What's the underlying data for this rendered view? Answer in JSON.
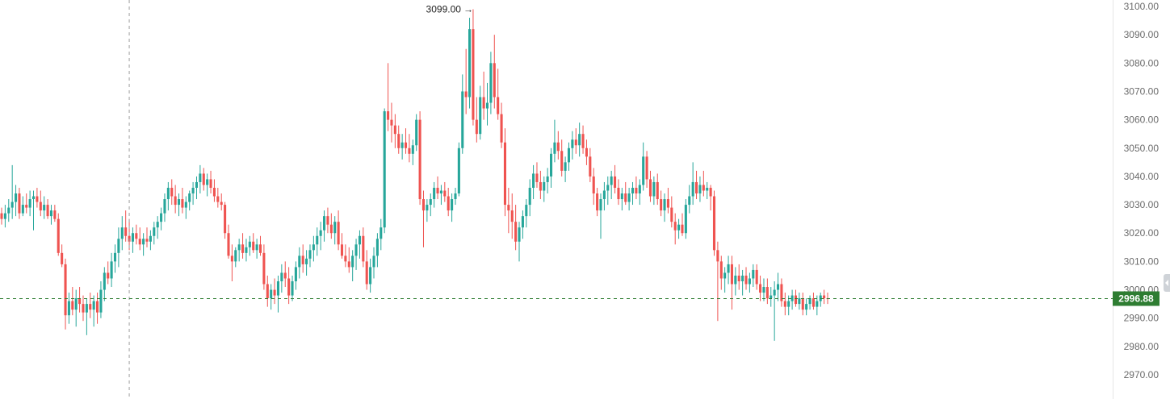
{
  "colors": {
    "up": "#26a69a",
    "down": "#ef5350",
    "crosshair": "#9e9e9e",
    "price_line": "#2e7d32",
    "price_badge": "#2e7d32",
    "axis_text": "#6b6b6b",
    "axis_border": "#e6e6e6",
    "background": "#ffffff"
  },
  "axis": {
    "ticks": [
      "3100.00",
      "3090.00",
      "3080.00",
      "3070.00",
      "3060.00",
      "3050.00",
      "3040.00",
      "3030.00",
      "3020.00",
      "3010.00",
      "3000.00",
      "2990.00",
      "2980.00",
      "2970.00"
    ]
  },
  "price_label": "2996.88",
  "high_marker": "3099.00",
  "scroll_handle_icon": "chevron-left-icon",
  "chart_data": {
    "type": "candlestick",
    "title": "",
    "ylim": [
      2965,
      3102
    ],
    "last_price": 2996.88,
    "high": 3099.0,
    "crosshair_candle_index": 36,
    "candles": [
      [
        3027.0,
        3029.0,
        3023.0,
        3025.0
      ],
      [
        3025.0,
        3030.0,
        3022.0,
        3027.0
      ],
      [
        3027.0,
        3032.0,
        3024.0,
        3029.0
      ],
      [
        3029.0,
        3044.0,
        3025.0,
        3031.0
      ],
      [
        3031.0,
        3037.0,
        3026.0,
        3034.0
      ],
      [
        3034.0,
        3036.0,
        3025.0,
        3027.0
      ],
      [
        3027.0,
        3033.0,
        3026.0,
        3030.0
      ],
      [
        3030.0,
        3034.0,
        3027.0,
        3029.0
      ],
      [
        3029.0,
        3035.0,
        3026.0,
        3032.0
      ],
      [
        3032.0,
        3035.0,
        3021.0,
        3033.0
      ],
      [
        3033.0,
        3036.0,
        3029.0,
        3031.0
      ],
      [
        3031.0,
        3035.0,
        3026.0,
        3028.0
      ],
      [
        3028.0,
        3033.0,
        3025.0,
        3030.0
      ],
      [
        3030.0,
        3032.0,
        3025.0,
        3026.0
      ],
      [
        3026.0,
        3030.0,
        3023.0,
        3028.0
      ],
      [
        3028.0,
        3030.0,
        3024.0,
        3025.0
      ],
      [
        3025.0,
        3027.0,
        3012.0,
        3013.0
      ],
      [
        3013.0,
        3016.0,
        3008.0,
        3009.0
      ],
      [
        3009.0,
        3011.0,
        2986.0,
        2991.0
      ],
      [
        2991.0,
        2999.0,
        2988.0,
        2996.0
      ],
      [
        2996.0,
        3001.0,
        2991.0,
        2993.0
      ],
      [
        2993.0,
        3000.0,
        2987.0,
        2997.0
      ],
      [
        2997.0,
        3001.0,
        2992.0,
        2995.0
      ],
      [
        2995.0,
        2998.0,
        2989.0,
        2992.0
      ],
      [
        2992.0,
        2997.0,
        2984.0,
        2995.0
      ],
      [
        2995.0,
        2999.0,
        2990.0,
        2993.0
      ],
      [
        2993.0,
        2998.0,
        2987.0,
        2996.0
      ],
      [
        2996.0,
        2999.0,
        2988.0,
        2992.0
      ],
      [
        2992.0,
        3003.0,
        2990.0,
        3000.0
      ],
      [
        3000.0,
        3008.0,
        2996.0,
        3006.0
      ],
      [
        3006.0,
        3010.0,
        3002.0,
        3004.0
      ],
      [
        3004.0,
        3013.0,
        3001.0,
        3010.0
      ],
      [
        3010.0,
        3016.0,
        3006.0,
        3013.0
      ],
      [
        3013.0,
        3022.0,
        3008.0,
        3018.0
      ],
      [
        3018.0,
        3026.0,
        3014.0,
        3022.0
      ],
      [
        3022.0,
        3028.0,
        3017.0,
        3019.0
      ],
      [
        3019.0,
        3025.0,
        3014.0,
        3017.0
      ],
      [
        3017.0,
        3022.0,
        3013.0,
        3020.0
      ],
      [
        3020.0,
        3023.0,
        3016.0,
        3018.0
      ],
      [
        3018.0,
        3022.0,
        3014.0,
        3016.0
      ],
      [
        3016.0,
        3020.0,
        3012.0,
        3018.0
      ],
      [
        3018.0,
        3022.0,
        3015.0,
        3017.0
      ],
      [
        3017.0,
        3021.0,
        3014.0,
        3019.0
      ],
      [
        3019.0,
        3024.0,
        3016.0,
        3022.0
      ],
      [
        3022.0,
        3026.0,
        3018.0,
        3024.0
      ],
      [
        3024.0,
        3029.0,
        3021.0,
        3027.0
      ],
      [
        3027.0,
        3034.0,
        3024.0,
        3032.0
      ],
      [
        3032.0,
        3038.0,
        3028.0,
        3036.0
      ],
      [
        3036.0,
        3039.0,
        3030.0,
        3033.0
      ],
      [
        3033.0,
        3037.0,
        3027.0,
        3030.0
      ],
      [
        3030.0,
        3034.0,
        3026.0,
        3032.0
      ],
      [
        3032.0,
        3036.0,
        3027.0,
        3029.0
      ],
      [
        3029.0,
        3033.0,
        3025.0,
        3031.0
      ],
      [
        3031.0,
        3035.0,
        3028.0,
        3034.0
      ],
      [
        3034.0,
        3038.0,
        3030.0,
        3036.0
      ],
      [
        3036.0,
        3040.0,
        3032.0,
        3038.0
      ],
      [
        3038.0,
        3044.0,
        3034.0,
        3041.0
      ],
      [
        3041.0,
        3043.0,
        3035.0,
        3037.0
      ],
      [
        3037.0,
        3041.0,
        3033.0,
        3039.0
      ],
      [
        3039.0,
        3042.0,
        3034.0,
        3036.0
      ],
      [
        3036.0,
        3039.0,
        3031.0,
        3033.0
      ],
      [
        3033.0,
        3036.0,
        3029.0,
        3031.0
      ],
      [
        3031.0,
        3034.0,
        3028.0,
        3030.0
      ],
      [
        3030.0,
        3031.0,
        3018.0,
        3020.0
      ],
      [
        3020.0,
        3023.0,
        3011.0,
        3012.0
      ],
      [
        3012.0,
        3016.0,
        3003.0,
        3010.0
      ],
      [
        3010.0,
        3015.0,
        3008.0,
        3014.0
      ],
      [
        3014.0,
        3018.0,
        3010.0,
        3016.0
      ],
      [
        3016.0,
        3020.0,
        3011.0,
        3013.0
      ],
      [
        3013.0,
        3018.0,
        3010.0,
        3015.0
      ],
      [
        3015.0,
        3019.0,
        3012.0,
        3017.0
      ],
      [
        3017.0,
        3020.0,
        3013.0,
        3014.0
      ],
      [
        3014.0,
        3018.0,
        3011.0,
        3016.0
      ],
      [
        3016.0,
        3019.0,
        3012.0,
        3013.0
      ],
      [
        3013.0,
        3016.0,
        3000.0,
        3002.0
      ],
      [
        3002.0,
        3005.0,
        2994.0,
        2997.0
      ],
      [
        2997.0,
        3002.0,
        2993.0,
        3000.0
      ],
      [
        3000.0,
        3004.0,
        2995.0,
        2998.0
      ],
      [
        2998.0,
        3005.0,
        2992.0,
        3003.0
      ],
      [
        3003.0,
        3009.0,
        2999.0,
        3006.0
      ],
      [
        3006.0,
        3010.0,
        3001.0,
        3004.0
      ],
      [
        3004.0,
        3008.0,
        2995.0,
        2998.0
      ],
      [
        2998.0,
        3005.0,
        2996.0,
        3003.0
      ],
      [
        3003.0,
        3010.0,
        3000.0,
        3008.0
      ],
      [
        3008.0,
        3015.0,
        3004.0,
        3012.0
      ],
      [
        3012.0,
        3016.0,
        3006.0,
        3009.0
      ],
      [
        3009.0,
        3014.0,
        3005.0,
        3011.0
      ],
      [
        3011.0,
        3016.0,
        3008.0,
        3014.0
      ],
      [
        3014.0,
        3019.0,
        3010.0,
        3016.0
      ],
      [
        3016.0,
        3022.0,
        3012.0,
        3019.0
      ],
      [
        3019.0,
        3024.0,
        3014.0,
        3021.0
      ],
      [
        3021.0,
        3028.0,
        3017.0,
        3026.0
      ],
      [
        3026.0,
        3029.0,
        3020.0,
        3023.0
      ],
      [
        3023.0,
        3027.0,
        3018.0,
        3020.0
      ],
      [
        3020.0,
        3026.0,
        3016.0,
        3024.0
      ],
      [
        3024.0,
        3028.0,
        3014.0,
        3016.0
      ],
      [
        3016.0,
        3020.0,
        3011.0,
        3012.0
      ],
      [
        3012.0,
        3016.0,
        3008.0,
        3010.0
      ],
      [
        3010.0,
        3015.0,
        3006.0,
        3008.0
      ],
      [
        3008.0,
        3014.0,
        3003.0,
        3012.0
      ],
      [
        3012.0,
        3018.0,
        3007.0,
        3016.0
      ],
      [
        3016.0,
        3021.0,
        3011.0,
        3019.0
      ],
      [
        3019.0,
        3022.0,
        3008.0,
        3010.0
      ],
      [
        3010.0,
        3014.0,
        3000.0,
        3002.0
      ],
      [
        3002.0,
        3011.0,
        2999.0,
        3008.0
      ],
      [
        3008.0,
        3015.0,
        3004.0,
        3012.0
      ],
      [
        3012.0,
        3020.0,
        3008.0,
        3018.0
      ],
      [
        3018.0,
        3025.0,
        3014.0,
        3022.0
      ],
      [
        3022.0,
        3064.0,
        3020.0,
        3063.0
      ],
      [
        3063.0,
        3080.0,
        3056.0,
        3060.0
      ],
      [
        3060.0,
        3066.0,
        3052.0,
        3058.0
      ],
      [
        3058.0,
        3062.0,
        3050.0,
        3055.0
      ],
      [
        3055.0,
        3058.0,
        3048.0,
        3050.0
      ],
      [
        3050.0,
        3055.0,
        3046.0,
        3052.0
      ],
      [
        3052.0,
        3057.0,
        3048.0,
        3050.0
      ],
      [
        3050.0,
        3055.0,
        3045.0,
        3048.0
      ],
      [
        3048.0,
        3053.0,
        3044.0,
        3051.0
      ],
      [
        3051.0,
        3062.0,
        3049.0,
        3060.0
      ],
      [
        3060.0,
        3063.0,
        3030.0,
        3032.0
      ],
      [
        3032.0,
        3035.0,
        3015.0,
        3028.0
      ],
      [
        3028.0,
        3032.0,
        3024.0,
        3030.0
      ],
      [
        3030.0,
        3034.0,
        3026.0,
        3032.0
      ],
      [
        3032.0,
        3038.0,
        3029.0,
        3036.0
      ],
      [
        3036.0,
        3040.0,
        3032.0,
        3034.0
      ],
      [
        3034.0,
        3037.0,
        3030.0,
        3035.0
      ],
      [
        3035.0,
        3038.0,
        3031.0,
        3033.0
      ],
      [
        3033.0,
        3036.0,
        3026.0,
        3028.0
      ],
      [
        3028.0,
        3034.0,
        3024.0,
        3032.0
      ],
      [
        3032.0,
        3036.0,
        3030.0,
        3034.0
      ],
      [
        3034.0,
        3052.0,
        3033.0,
        3050.0
      ],
      [
        3050.0,
        3076.0,
        3048.0,
        3070.0
      ],
      [
        3070.0,
        3085.0,
        3062.0,
        3068.0
      ],
      [
        3068.0,
        3096.0,
        3064.0,
        3092.0
      ],
      [
        3092.0,
        3099.0,
        3058.0,
        3060.0
      ],
      [
        3060.0,
        3068.0,
        3052.0,
        3055.0
      ],
      [
        3055.0,
        3072.0,
        3053.0,
        3068.0
      ],
      [
        3068.0,
        3077.0,
        3060.0,
        3064.0
      ],
      [
        3064.0,
        3073.0,
        3058.0,
        3066.0
      ],
      [
        3066.0,
        3084.0,
        3062.0,
        3080.0
      ],
      [
        3080.0,
        3090.0,
        3064.0,
        3068.0
      ],
      [
        3068.0,
        3078.0,
        3060.0,
        3062.0
      ],
      [
        3062.0,
        3066.0,
        3050.0,
        3052.0
      ],
      [
        3052.0,
        3057.0,
        3026.0,
        3030.0
      ],
      [
        3030.0,
        3036.0,
        3020.0,
        3028.0
      ],
      [
        3028.0,
        3034.0,
        3018.0,
        3024.0
      ],
      [
        3024.0,
        3030.0,
        3014.0,
        3017.0
      ],
      [
        3017.0,
        3024.0,
        3010.0,
        3022.0
      ],
      [
        3022.0,
        3028.0,
        3018.0,
        3026.0
      ],
      [
        3026.0,
        3032.0,
        3022.0,
        3030.0
      ],
      [
        3030.0,
        3039.0,
        3026.0,
        3036.0
      ],
      [
        3036.0,
        3044.0,
        3032.0,
        3041.0
      ],
      [
        3041.0,
        3045.0,
        3036.0,
        3038.0
      ],
      [
        3038.0,
        3042.0,
        3032.0,
        3035.0
      ],
      [
        3035.0,
        3040.0,
        3031.0,
        3038.0
      ],
      [
        3038.0,
        3043.0,
        3034.0,
        3040.0
      ],
      [
        3040.0,
        3050.0,
        3036.0,
        3048.0
      ],
      [
        3048.0,
        3060.0,
        3045.0,
        3052.0
      ],
      [
        3052.0,
        3056.0,
        3046.0,
        3049.0
      ],
      [
        3049.0,
        3053.0,
        3040.0,
        3042.0
      ],
      [
        3042.0,
        3047.0,
        3038.0,
        3045.0
      ],
      [
        3045.0,
        3052.0,
        3042.0,
        3050.0
      ],
      [
        3050.0,
        3056.0,
        3046.0,
        3053.0
      ],
      [
        3053.0,
        3057.0,
        3048.0,
        3051.0
      ],
      [
        3051.0,
        3059.0,
        3047.0,
        3055.0
      ],
      [
        3055.0,
        3058.0,
        3048.0,
        3050.0
      ],
      [
        3050.0,
        3053.0,
        3044.0,
        3047.0
      ],
      [
        3047.0,
        3050.0,
        3038.0,
        3040.0
      ],
      [
        3040.0,
        3043.0,
        3030.0,
        3034.0
      ],
      [
        3034.0,
        3036.0,
        3026.0,
        3028.0
      ],
      [
        3028.0,
        3034.0,
        3018.0,
        3032.0
      ],
      [
        3032.0,
        3038.0,
        3028.0,
        3035.0
      ],
      [
        3035.0,
        3040.0,
        3030.0,
        3037.0
      ],
      [
        3037.0,
        3042.0,
        3032.0,
        3040.0
      ],
      [
        3040.0,
        3044.0,
        3034.0,
        3036.0
      ],
      [
        3036.0,
        3039.0,
        3030.0,
        3032.0
      ],
      [
        3032.0,
        3036.0,
        3028.0,
        3034.0
      ],
      [
        3034.0,
        3038.0,
        3030.0,
        3031.0
      ],
      [
        3031.0,
        3036.0,
        3028.0,
        3034.0
      ],
      [
        3034.0,
        3038.0,
        3030.0,
        3036.0
      ],
      [
        3036.0,
        3040.0,
        3032.0,
        3034.0
      ],
      [
        3034.0,
        3039.0,
        3030.0,
        3037.0
      ],
      [
        3037.0,
        3052.0,
        3035.0,
        3047.0
      ],
      [
        3047.0,
        3049.0,
        3036.0,
        3039.0
      ],
      [
        3039.0,
        3042.0,
        3031.0,
        3033.0
      ],
      [
        3033.0,
        3040.0,
        3030.0,
        3038.0
      ],
      [
        3038.0,
        3041.0,
        3030.0,
        3032.0
      ],
      [
        3032.0,
        3035.0,
        3026.0,
        3028.0
      ],
      [
        3028.0,
        3034.0,
        3024.0,
        3032.0
      ],
      [
        3032.0,
        3036.0,
        3027.0,
        3029.0
      ],
      [
        3029.0,
        3033.0,
        3022.0,
        3024.0
      ],
      [
        3024.0,
        3027.0,
        3016.0,
        3021.0
      ],
      [
        3021.0,
        3025.0,
        3018.0,
        3023.0
      ],
      [
        3023.0,
        3027.0,
        3019.0,
        3020.0
      ],
      [
        3020.0,
        3032.0,
        3018.0,
        3030.0
      ],
      [
        3030.0,
        3037.0,
        3027.0,
        3033.0
      ],
      [
        3033.0,
        3045.0,
        3030.0,
        3038.0
      ],
      [
        3038.0,
        3042.0,
        3032.0,
        3034.0
      ],
      [
        3034.0,
        3040.0,
        3031.0,
        3037.0
      ],
      [
        3037.0,
        3042.0,
        3033.0,
        3035.0
      ],
      [
        3035.0,
        3038.0,
        3032.0,
        3036.0
      ],
      [
        3036.0,
        3037.0,
        3028.0,
        3033.0
      ],
      [
        3033.0,
        3035.0,
        3012.0,
        3014.0
      ],
      [
        3014.0,
        3017.0,
        2989.0,
        3010.0
      ],
      [
        3010.0,
        3012.0,
        3000.0,
        3004.0
      ],
      [
        3004.0,
        3008.0,
        2999.0,
        3006.0
      ],
      [
        3006.0,
        3012.0,
        3002.0,
        3009.0
      ],
      [
        3009.0,
        3012.0,
        2993.0,
        3002.0
      ],
      [
        3002.0,
        3008.0,
        2998.0,
        3005.0
      ],
      [
        3005.0,
        3009.0,
        3000.0,
        3003.0
      ],
      [
        3003.0,
        3007.0,
        2998.0,
        3005.0
      ],
      [
        3005.0,
        3008.0,
        3000.0,
        3002.0
      ],
      [
        3002.0,
        3006.0,
        2999.0,
        3004.0
      ],
      [
        3004.0,
        3009.0,
        3001.0,
        3007.0
      ],
      [
        3007.0,
        3009.0,
        3000.0,
        3002.0
      ],
      [
        3002.0,
        3005.0,
        2996.0,
        2999.0
      ],
      [
        2999.0,
        3004.0,
        2996.0,
        3001.0
      ],
      [
        3001.0,
        3004.0,
        2995.0,
        2997.0
      ],
      [
        2997.0,
        3001.0,
        2994.0,
        2998.0
      ],
      [
        2998.0,
        3003.0,
        2982.0,
        3000.0
      ],
      [
        3000.0,
        3006.0,
        2996.0,
        3002.0
      ],
      [
        3002.0,
        3004.0,
        2994.0,
        2996.0
      ],
      [
        2996.0,
        2999.0,
        2991.0,
        2994.0
      ],
      [
        2994.0,
        2998.0,
        2991.0,
        2996.0
      ],
      [
        2996.0,
        3000.0,
        2993.0,
        2998.0
      ],
      [
        2998.0,
        3000.0,
        2994.0,
        2995.0
      ],
      [
        2995.0,
        2999.0,
        2993.0,
        2997.0
      ],
      [
        2997.0,
        2999.0,
        2991.0,
        2993.0
      ],
      [
        2993.0,
        2997.0,
        2991.0,
        2995.0
      ],
      [
        2995.0,
        2998.0,
        2993.0,
        2997.0
      ],
      [
        2997.0,
        2999.0,
        2993.0,
        2994.0
      ],
      [
        2994.0,
        2998.0,
        2991.0,
        2996.0
      ],
      [
        2996.0,
        2999.0,
        2994.0,
        2998.0
      ],
      [
        2998.0,
        3000.0,
        2995.0,
        2997.0
      ],
      [
        2997.0,
        2999.0,
        2995.0,
        2996.88
      ]
    ]
  }
}
